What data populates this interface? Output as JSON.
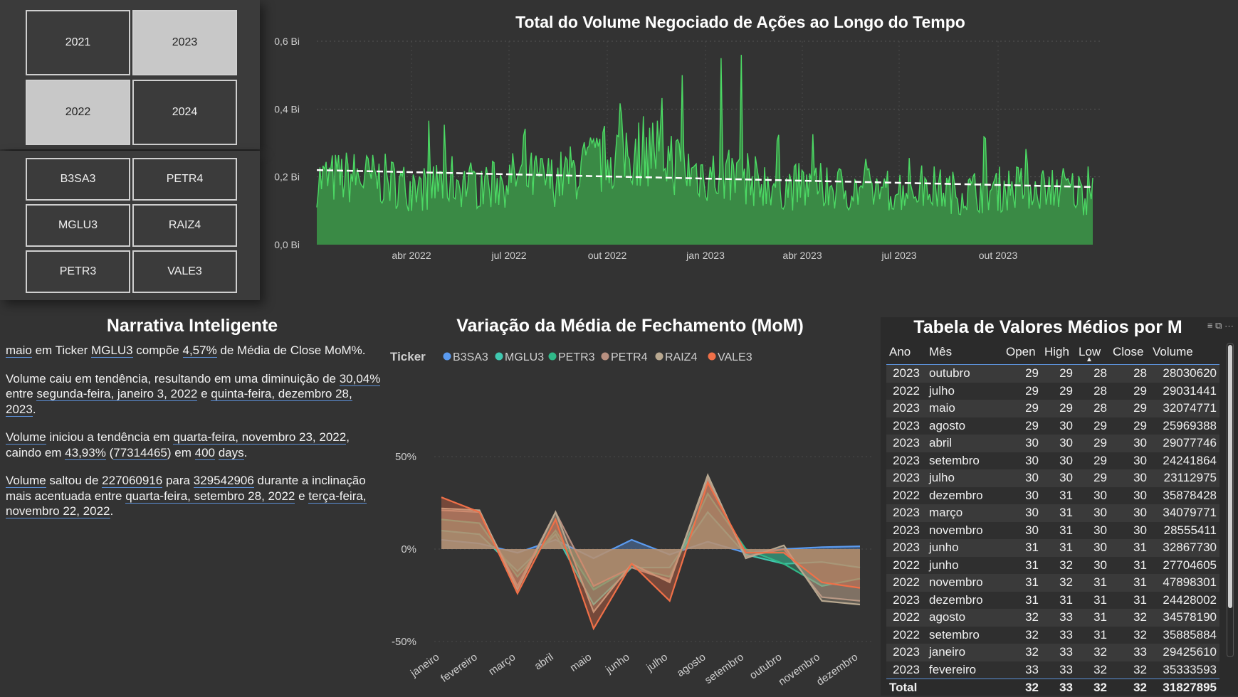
{
  "year_slicer": {
    "items": [
      {
        "label": "2021",
        "selected": false
      },
      {
        "label": "2023",
        "selected": true
      },
      {
        "label": "2022",
        "selected": true
      },
      {
        "label": "2024",
        "selected": false
      }
    ]
  },
  "ticker_slicer": {
    "items": [
      {
        "label": "B3SA3"
      },
      {
        "label": "PETR4"
      },
      {
        "label": "MGLU3"
      },
      {
        "label": "RAIZ4"
      },
      {
        "label": "PETR3"
      },
      {
        "label": "VALE3"
      }
    ]
  },
  "volume_chart": {
    "title": "Total do Volume Negociado de Ações ao Longo do Tempo",
    "y_ticks": [
      "0,6 Bi",
      "0,4 Bi",
      "0,2 Bi",
      "0,0 Bi"
    ],
    "x_ticks": [
      "abr 2022",
      "jul 2022",
      "out 2022",
      "jan 2023",
      "abr 2023",
      "jul 2023",
      "out 2023"
    ],
    "area_color": "#3a8a45",
    "line_color": "#4cd964"
  },
  "narrative": {
    "title": "Narrativa Inteligente",
    "p1": {
      "a": "maio",
      "b": " em Ticker ",
      "c": "MGLU3",
      "d": " compõe ",
      "e": "4,57%",
      "f": " de Média de Close MoM%."
    },
    "p2": {
      "a": "Volume caiu em tendência, resultando em uma diminuição de ",
      "b": "30,04%",
      "c": " entre ",
      "d": "segunda-feira, janeiro 3, 2022",
      "e": " e ",
      "f": "quinta-feira, dezembro 28, 2023",
      "g": "."
    },
    "p3": {
      "a": "Volume",
      "b": " iniciou a tendência em ",
      "c": "quarta-feira, novembro 23, 2022",
      "d": ", caindo em ",
      "e": "43,93%",
      "f": " (",
      "g": "77314465",
      "h": ") em ",
      "i": "400",
      "j": " ",
      "k": "days",
      "l": "."
    },
    "p4": {
      "a": "Volume",
      "b": " saltou de ",
      "c": "227060916",
      "d": " para ",
      "e": "329542906",
      "f": " durante a inclinação mais acentuada entre ",
      "g": "quarta-feira, setembro 28, 2022",
      "h": " e ",
      "i": "terça-feira, novembro 22, 2022",
      "j": "."
    }
  },
  "mom_chart": {
    "title": "Variação da Média de Fechamento (MoM)",
    "legend_title": "Ticker",
    "y_ticks": [
      "50%",
      "0%",
      "-50%"
    ]
  },
  "chart_data": [
    {
      "type": "line",
      "title": "Variação da Média de Fechamento (MoM)",
      "categories": [
        "janeiro",
        "fevereiro",
        "março",
        "abril",
        "maio",
        "junho",
        "julho",
        "agosto",
        "setembro",
        "outubro",
        "novembro",
        "dezembro"
      ],
      "ylim": [
        -50,
        50
      ],
      "series": [
        {
          "name": "B3SA3",
          "color": "#5b9bf0",
          "values": [
            5,
            3,
            -2,
            5,
            -5,
            5,
            -3,
            4,
            -2,
            0,
            1,
            1.5
          ]
        },
        {
          "name": "MGLU3",
          "color": "#40c8b0",
          "values": [
            10,
            8,
            -12,
            8,
            -30,
            -10,
            -10,
            20,
            -3,
            -8,
            -7,
            -10
          ]
        },
        {
          "name": "PETR3",
          "color": "#30b888",
          "values": [
            16,
            14,
            -15,
            10,
            -22,
            -10,
            -15,
            30,
            0,
            -8,
            -20,
            -16
          ]
        },
        {
          "name": "PETR4",
          "color": "#b89080",
          "values": [
            21,
            20,
            -20,
            20,
            -20,
            -10,
            -17,
            38,
            -4,
            0,
            -26,
            -28
          ]
        },
        {
          "name": "RAIZ4",
          "color": "#b8a890",
          "values": [
            22,
            21,
            -22,
            20,
            -34,
            -8,
            -18,
            40,
            -5,
            2,
            -28,
            -30
          ]
        },
        {
          "name": "VALE3",
          "color": "#f07048",
          "values": [
            28,
            20,
            -24,
            16,
            -43,
            -8,
            -28,
            36,
            -2,
            -2,
            -18,
            -21
          ]
        }
      ]
    },
    {
      "type": "area",
      "title": "Total do Volume Negociado de Ações ao Longo do Tempo",
      "x": [
        "jan 2022",
        "fev 2022",
        "mar 2022",
        "abr 2022",
        "mai 2022",
        "jun 2022",
        "jul 2022",
        "ago 2022",
        "set 2022",
        "out 2022",
        "nov 2022",
        "dez 2022",
        "jan 2023",
        "fev 2023",
        "mar 2023",
        "abr 2023",
        "mai 2023",
        "jun 2023",
        "jul 2023",
        "ago 2023",
        "set 2023",
        "out 2023",
        "nov 2023",
        "dez 2023"
      ],
      "y_unit": "Bi",
      "values": [
        0.2,
        0.21,
        0.2,
        0.17,
        0.2,
        0.18,
        0.21,
        0.2,
        0.24,
        0.29,
        0.3,
        0.23,
        0.21,
        0.2,
        0.18,
        0.18,
        0.17,
        0.17,
        0.18,
        0.16,
        0.17,
        0.18,
        0.18,
        0.15
      ],
      "trend": [
        0.22,
        0.17
      ],
      "ylim": [
        0,
        0.6
      ]
    }
  ],
  "table": {
    "title": "Tabela de Valores Médios por M",
    "headers": [
      "Ano",
      "Mês",
      "Open",
      "High",
      "Low",
      "Close",
      "Volume"
    ],
    "rows": [
      [
        "2023",
        "outubro",
        "29",
        "29",
        "28",
        "28",
        "28030620"
      ],
      [
        "2022",
        "julho",
        "29",
        "29",
        "28",
        "29",
        "29031441"
      ],
      [
        "2023",
        "maio",
        "29",
        "29",
        "28",
        "29",
        "32074771"
      ],
      [
        "2023",
        "agosto",
        "29",
        "30",
        "29",
        "29",
        "25969388"
      ],
      [
        "2023",
        "abril",
        "30",
        "30",
        "29",
        "30",
        "29077746"
      ],
      [
        "2023",
        "setembro",
        "30",
        "30",
        "29",
        "30",
        "24241864"
      ],
      [
        "2023",
        "julho",
        "30",
        "30",
        "29",
        "30",
        "23112975"
      ],
      [
        "2022",
        "dezembro",
        "30",
        "31",
        "30",
        "30",
        "35878428"
      ],
      [
        "2023",
        "março",
        "30",
        "31",
        "30",
        "30",
        "34079771"
      ],
      [
        "2023",
        "novembro",
        "30",
        "31",
        "30",
        "30",
        "28555411"
      ],
      [
        "2023",
        "junho",
        "31",
        "31",
        "30",
        "31",
        "32867730"
      ],
      [
        "2022",
        "junho",
        "31",
        "32",
        "30",
        "31",
        "27704605"
      ],
      [
        "2022",
        "novembro",
        "31",
        "32",
        "31",
        "31",
        "47898301"
      ],
      [
        "2023",
        "dezembro",
        "31",
        "31",
        "31",
        "31",
        "24428002"
      ],
      [
        "2022",
        "agosto",
        "32",
        "33",
        "31",
        "32",
        "34578190"
      ],
      [
        "2022",
        "setembro",
        "32",
        "33",
        "31",
        "32",
        "35885884"
      ],
      [
        "2023",
        "janeiro",
        "32",
        "33",
        "32",
        "33",
        "29425610"
      ],
      [
        "2023",
        "fevereiro",
        "33",
        "33",
        "32",
        "32",
        "35333593"
      ]
    ],
    "total": [
      "Total",
      "",
      "32",
      "33",
      "32",
      "32",
      "31827895"
    ]
  }
}
